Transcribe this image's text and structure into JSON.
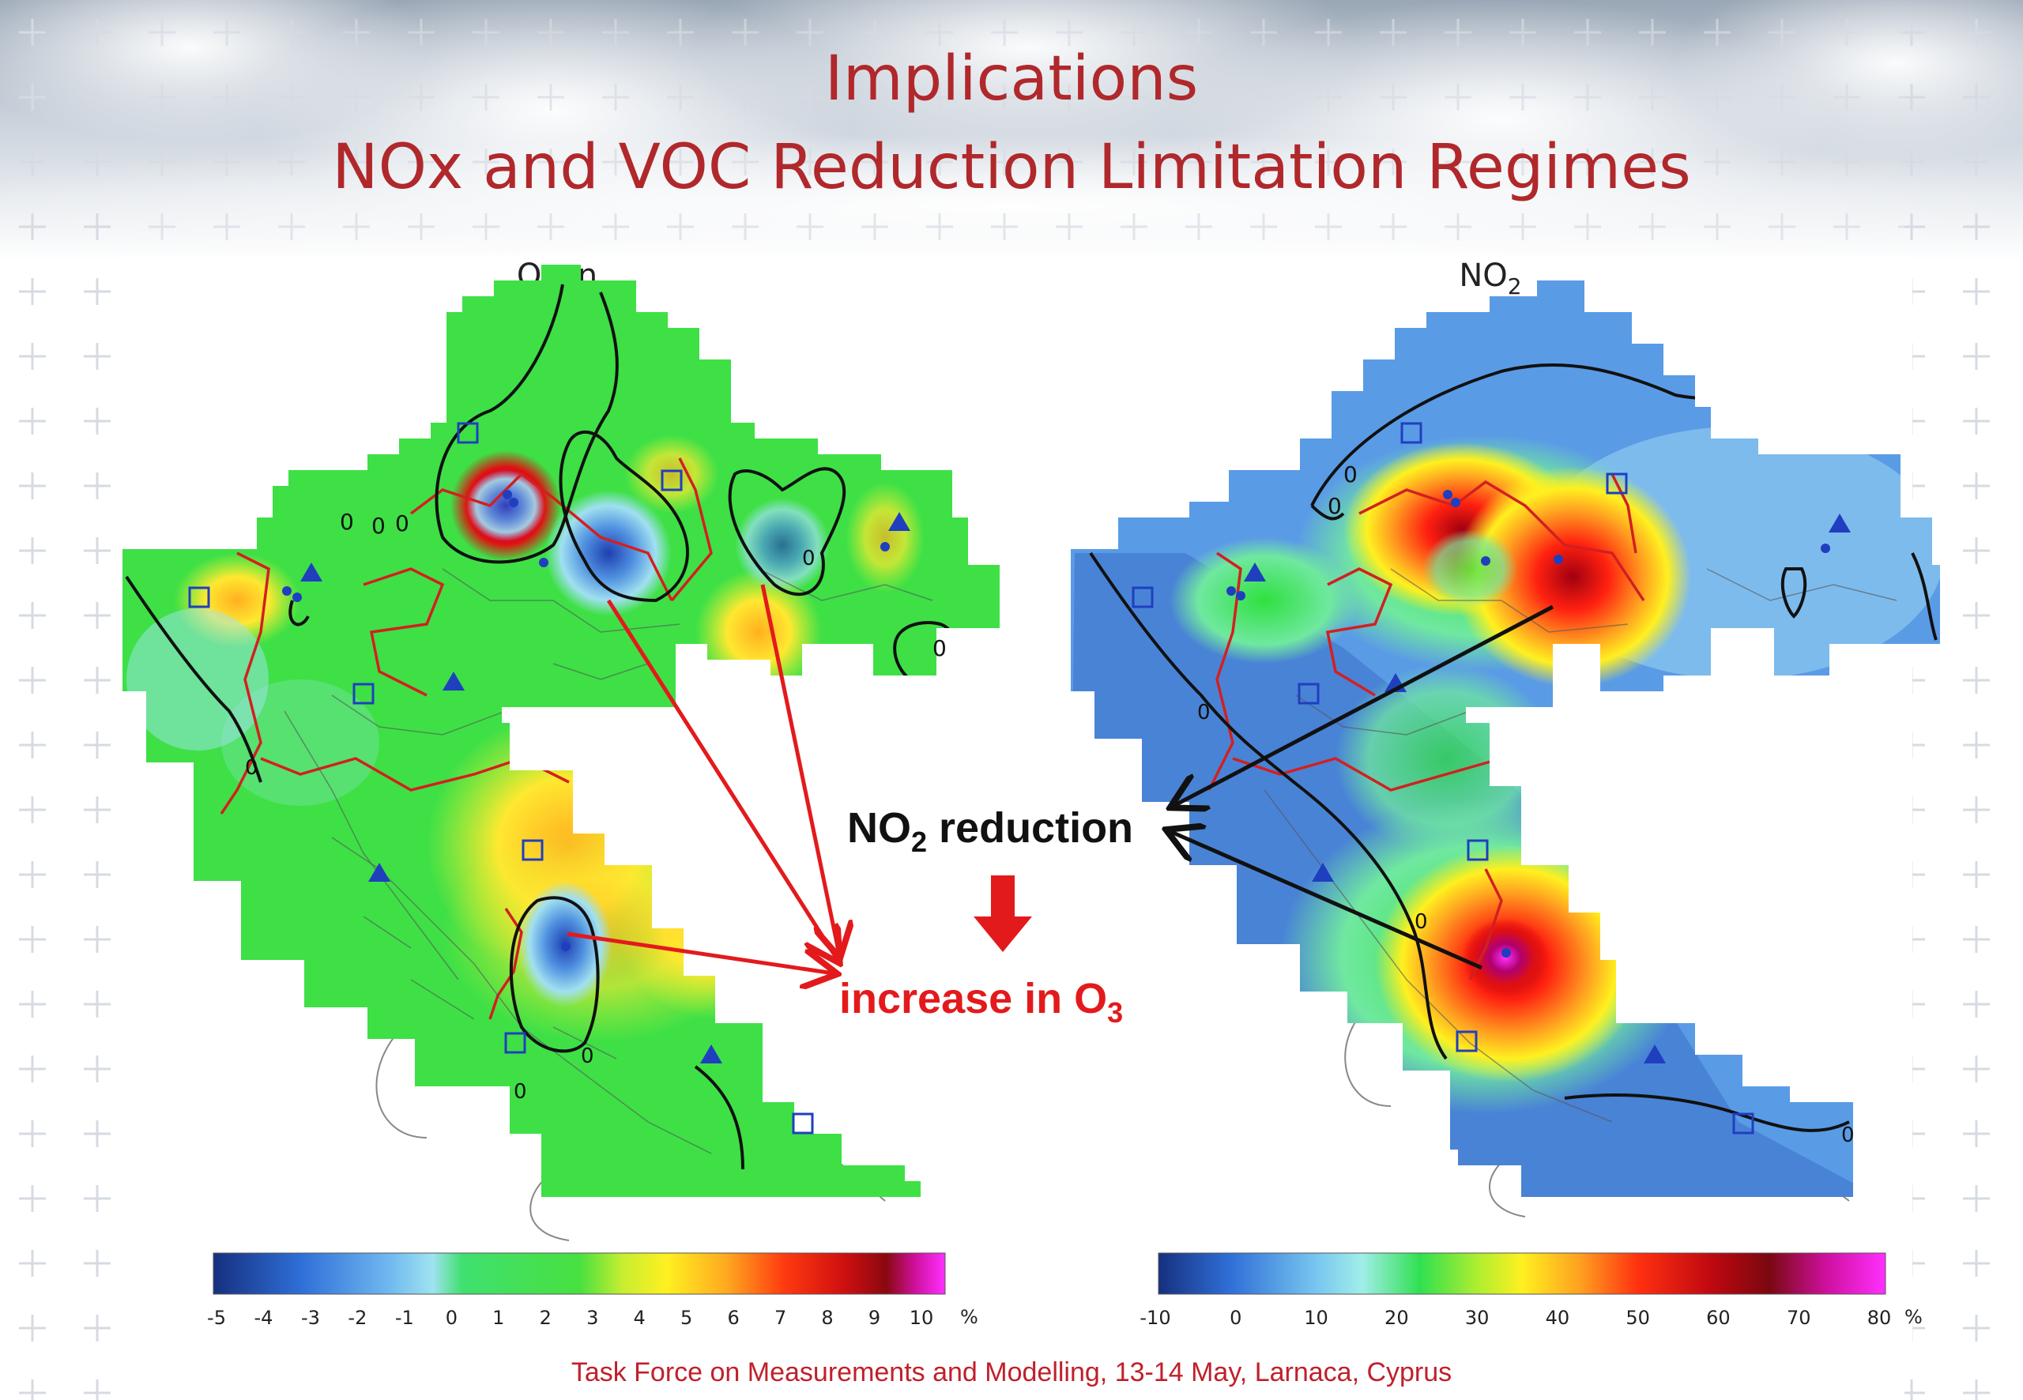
{
  "title": {
    "line1": "Implications",
    "line2": "NOx and VOC Reduction Limitation Regimes"
  },
  "left_map": {
    "label": "Ozon",
    "legend_ticks": [
      "-5",
      "-4",
      "-3",
      "-2",
      "-1",
      "0",
      "1",
      "2",
      "3",
      "4",
      "5",
      "6",
      "7",
      "8",
      "9",
      "10"
    ],
    "legend_unit": "%",
    "contour_labels": [
      "0",
      "0",
      "0",
      "0",
      "0",
      "0",
      "0",
      "0"
    ]
  },
  "right_map": {
    "label": "NO",
    "label_sub": "2",
    "legend_ticks": [
      "-10",
      "0",
      "10",
      "20",
      "30",
      "40",
      "50",
      "60",
      "70",
      "80"
    ],
    "legend_unit": "%",
    "contour_labels": [
      "0",
      "0",
      "0",
      "0",
      "0"
    ]
  },
  "annotation": {
    "no2_prefix": "NO",
    "no2_sub": "2",
    "no2_suffix": " reduction",
    "increase_prefix": "increase in O",
    "increase_sub": "3"
  },
  "footer": "Task Force on Measurements and Modelling, 13-14 May, Larnaca, Cyprus",
  "colors": {
    "title": "#b0282b",
    "annotation_red": "#e31a1c",
    "footer": "#c0202a",
    "contour": "#111111",
    "border": "#d22020",
    "marker": "#1f3fbf"
  }
}
